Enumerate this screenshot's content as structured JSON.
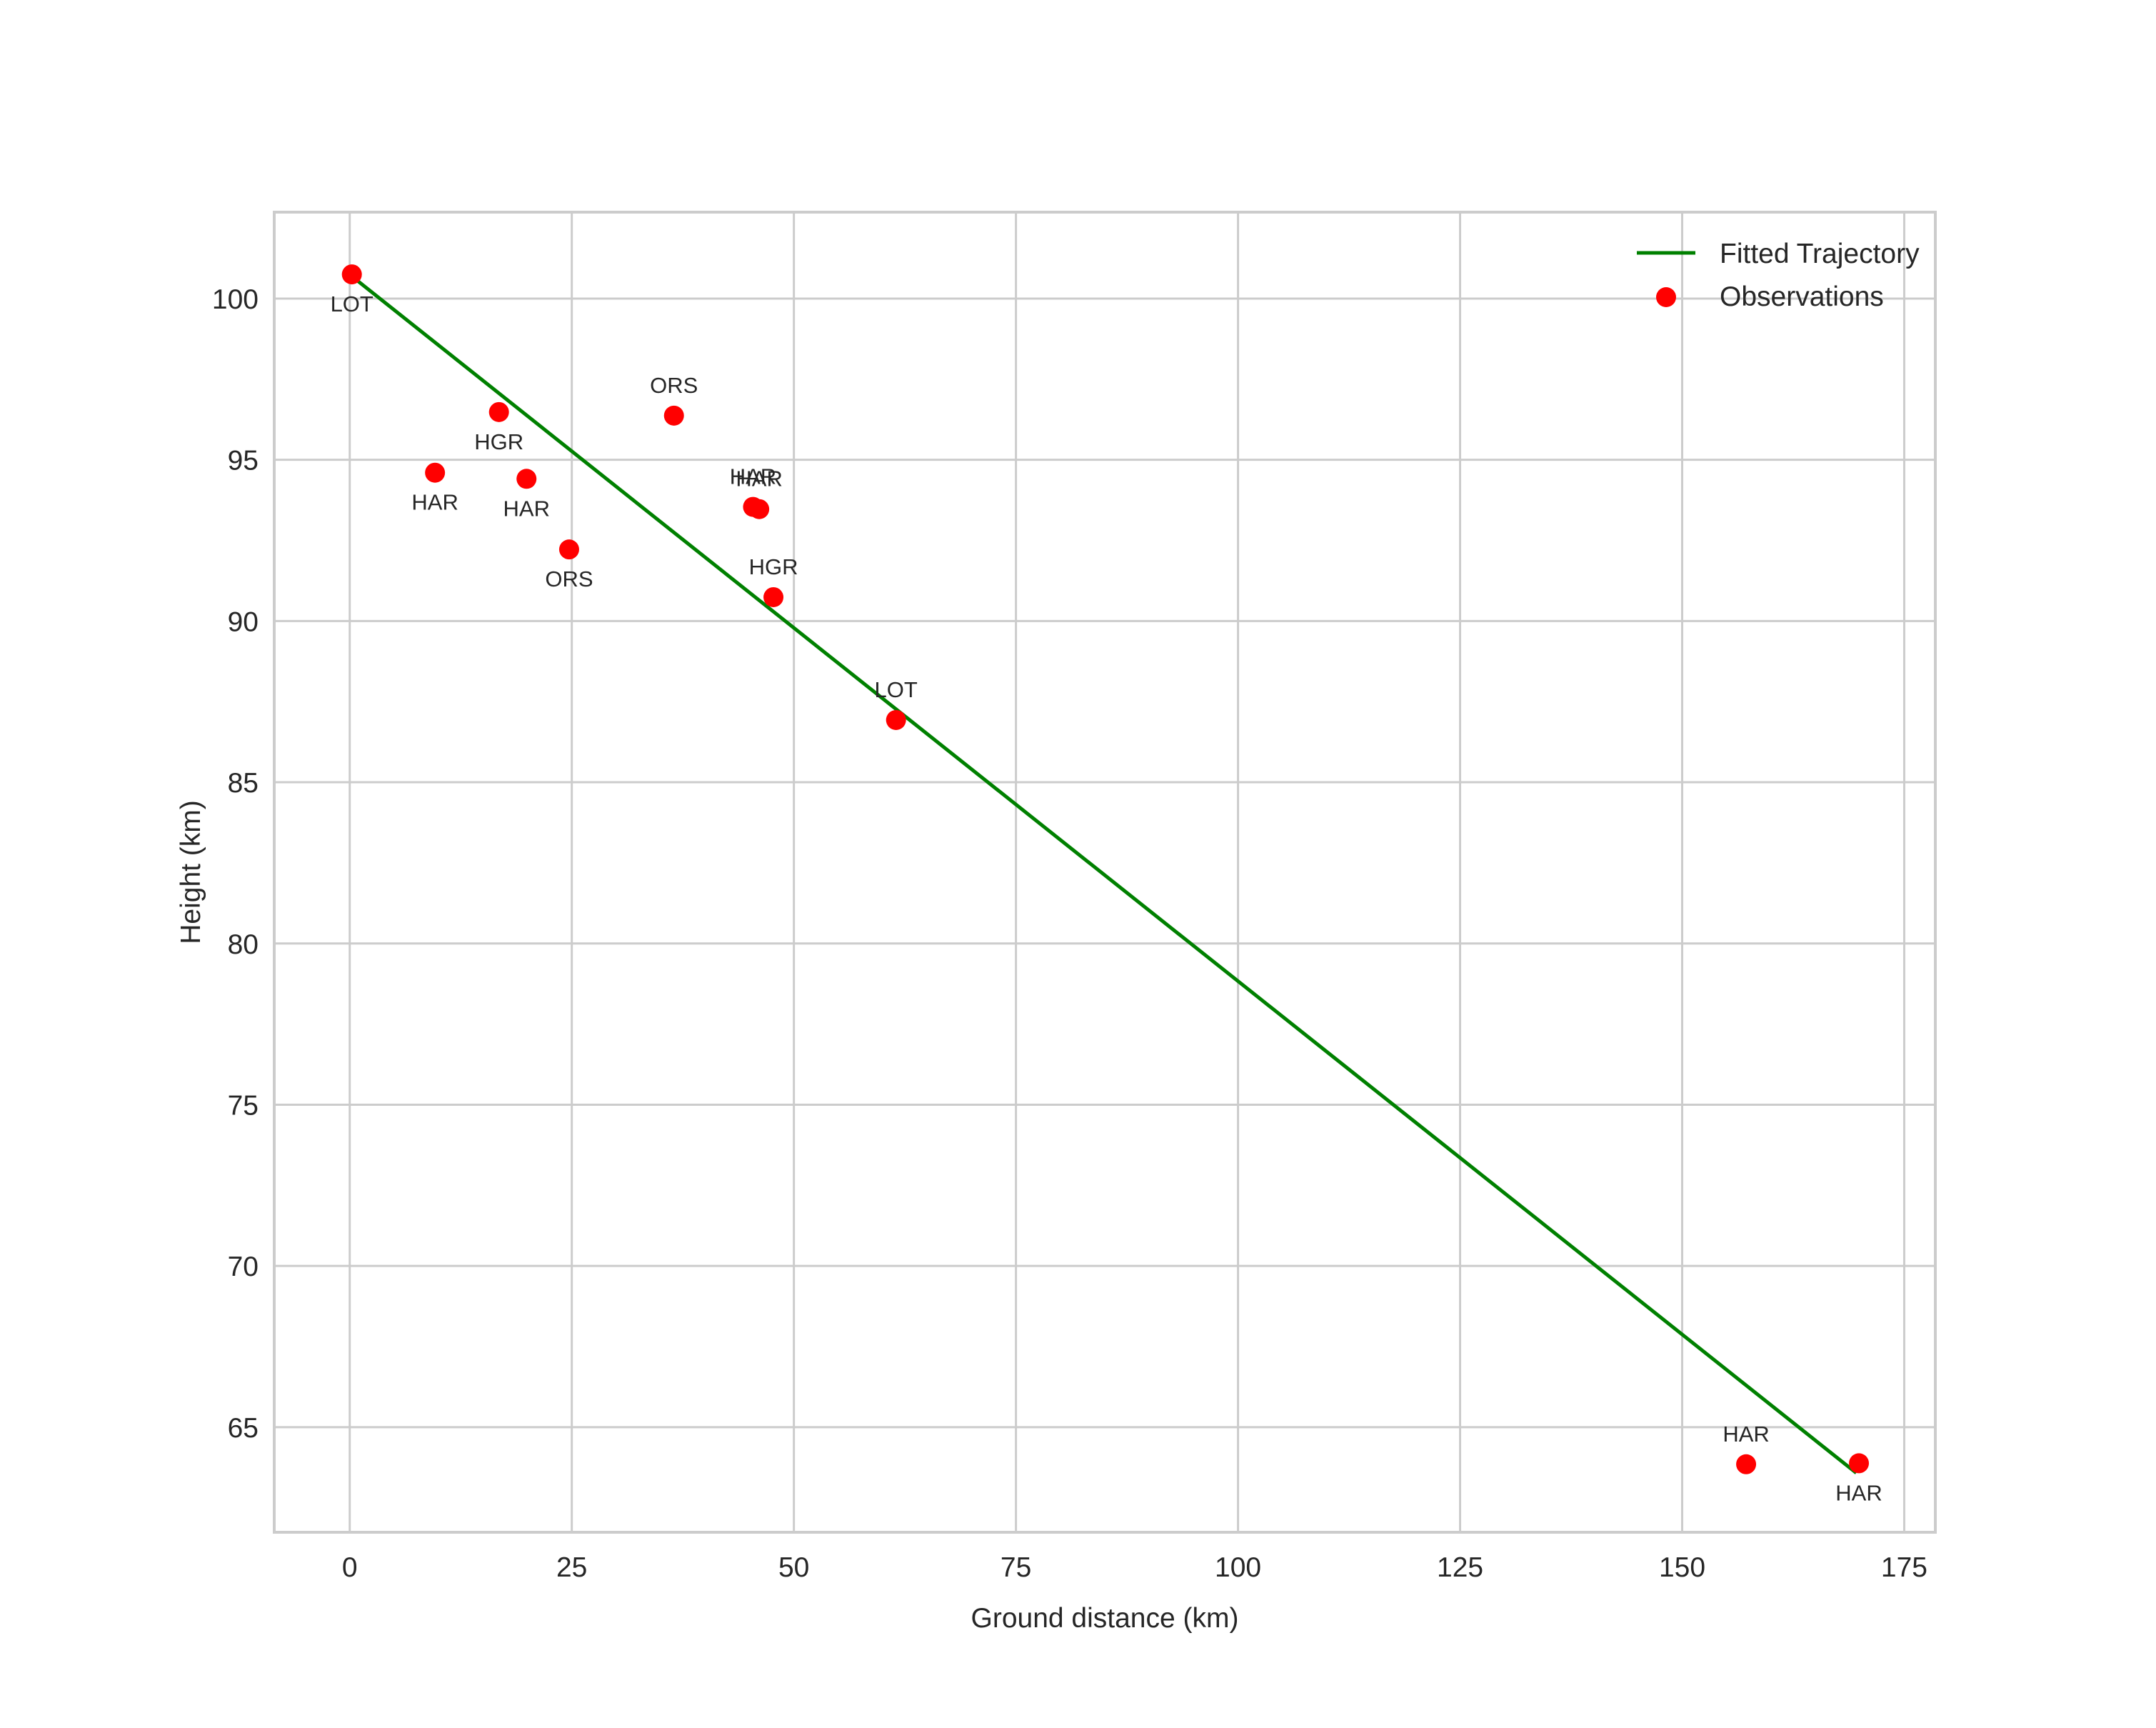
{
  "chart_data": {
    "type": "scatter",
    "title": "",
    "xlabel": "Ground distance (km)",
    "ylabel": "Height (km)",
    "xlim": [
      -8.5,
      178.5
    ],
    "ylim": [
      61.74,
      102.68
    ],
    "xticks": [
      0,
      25,
      50,
      75,
      100,
      125,
      150,
      175
    ],
    "yticks": [
      65,
      70,
      75,
      80,
      85,
      90,
      95,
      100
    ],
    "grid": true,
    "legend_position": "upper right",
    "series": [
      {
        "name": "Fitted Trajectory",
        "type": "line",
        "color": "#008000",
        "x": [
          0.2,
          169.6
        ],
        "y": [
          100.7,
          63.58
        ]
      },
      {
        "name": "Observations",
        "type": "scatter",
        "color": "#ff0000",
        "points": [
          {
            "x": 0.24,
            "y": 100.75,
            "label": "LOT",
            "label_pos": "below"
          },
          {
            "x": 16.8,
            "y": 96.48,
            "label": "HGR",
            "label_pos": "below"
          },
          {
            "x": 9.6,
            "y": 94.6,
            "label": "HAR",
            "label_pos": "below"
          },
          {
            "x": 19.9,
            "y": 94.41,
            "label": "HAR",
            "label_pos": "below"
          },
          {
            "x": 24.7,
            "y": 92.22,
            "label": "ORS",
            "label_pos": "below"
          },
          {
            "x": 36.5,
            "y": 96.37,
            "label": "ORS",
            "label_pos": "above"
          },
          {
            "x": 45.4,
            "y": 93.54,
            "label": "HAR",
            "label_pos": "above"
          },
          {
            "x": 46.1,
            "y": 93.47,
            "label": "HAR",
            "label_pos": "above"
          },
          {
            "x": 47.7,
            "y": 90.74,
            "label": "HGR",
            "label_pos": "above"
          },
          {
            "x": 61.5,
            "y": 86.93,
            "label": "LOT",
            "label_pos": "above"
          },
          {
            "x": 157.2,
            "y": 63.85,
            "label": "HAR",
            "label_pos": "above"
          },
          {
            "x": 169.9,
            "y": 63.88,
            "label": "HAR",
            "label_pos": "below"
          }
        ]
      }
    ]
  },
  "legend": {
    "items": [
      {
        "label": "Fitted Trajectory",
        "marker": "line",
        "color": "#008000"
      },
      {
        "label": "Observations",
        "marker": "dot",
        "color": "#ff0000"
      }
    ]
  },
  "style": {
    "grid_color": "#cccccc",
    "text_color": "#262626",
    "background": "#ffffff"
  }
}
